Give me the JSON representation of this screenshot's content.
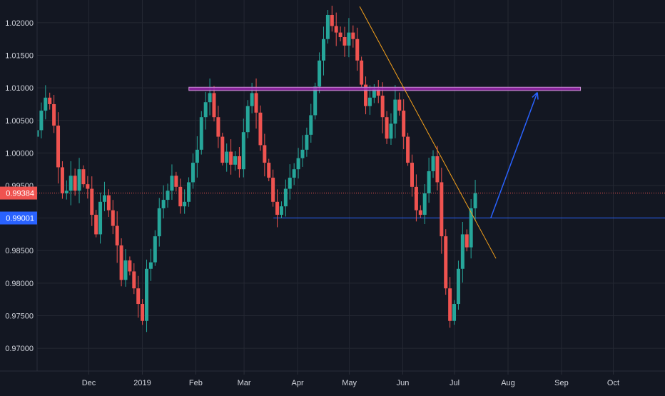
{
  "chart_data": {
    "type": "candlestick",
    "title": "",
    "xlabel": "",
    "ylabel": "",
    "ylim": [
      0.9665,
      1.0235
    ],
    "grid": true,
    "y_ticks": [
      "1.02000",
      "1.01500",
      "1.01000",
      "1.00500",
      "1.00000",
      "0.99500",
      "0.99000",
      "0.98500",
      "0.98000",
      "0.97500",
      "0.97000"
    ],
    "y_tick_values": [
      1.02,
      1.015,
      1.01,
      1.005,
      1.0,
      0.995,
      0.99,
      0.985,
      0.98,
      0.975,
      0.97
    ],
    "x_ticks": [
      "Dec",
      "2019",
      "Feb",
      "Mar",
      "Apr",
      "May",
      "Jun",
      "Jul",
      "Aug",
      "Sep",
      "Oct"
    ],
    "x_tick_dates": [
      "2018-12-01",
      "2019-01-01",
      "2019-02-01",
      "2019-03-01",
      "2019-04-01",
      "2019-05-01",
      "2019-06-01",
      "2019-07-01",
      "2019-08-01",
      "2019-09-01",
      "2019-10-01"
    ],
    "price_labels": {
      "current": {
        "value": 0.99384,
        "text": "0.99384",
        "color": "#ef5350"
      },
      "support": {
        "value": 0.99001,
        "text": "0.99001",
        "color": "#2962ff"
      }
    },
    "candles_close": [
      1.0035,
      1.0065,
      1.0085,
      1.0075,
      1.0042,
      0.9978,
      0.9938,
      0.9942,
      0.9965,
      0.9942,
      0.9975,
      0.9952,
      0.9945,
      0.9905,
      0.9875,
      0.9925,
      0.9935,
      0.9912,
      0.9888,
      0.9858,
      0.9805,
      0.9835,
      0.9818,
      0.9792,
      0.9768,
      0.9742,
      0.9822,
      0.9832,
      0.9872,
      0.9915,
      0.9928,
      0.9942,
      0.9965,
      0.9948,
      0.9918,
      0.9925,
      0.9955,
      0.9985,
      1.0005,
      1.0055,
      1.0078,
      1.0092,
      1.0055,
      1.0025,
      0.9985,
      1.0002,
      0.9982,
      0.9995,
      0.9975,
      1.0032,
      1.0072,
      1.0092,
      1.0062,
      1.0012,
      0.9985,
      0.9962,
      0.9925,
      0.9905,
      0.9918,
      0.9945,
      0.9962,
      0.9975,
      0.9992,
      1.0005,
      1.0028,
      1.0058,
      1.0102,
      1.0142,
      1.0175,
      1.0212,
      1.0195,
      1.0185,
      1.0178,
      1.0165,
      1.0185,
      1.0175,
      1.0142,
      1.0105,
      1.0072,
      1.0085,
      1.0098,
      1.0088,
      1.0055,
      1.0022,
      1.0045,
      1.0082,
      1.0065,
      1.0025,
      0.9985,
      0.9948,
      0.9912,
      0.9905,
      0.9938,
      0.9972,
      0.9995,
      0.9955,
      0.9872,
      0.9792,
      0.9742,
      0.9768,
      0.9822,
      0.9875,
      0.9855,
      0.9915,
      0.9938
    ],
    "annotations": {
      "resistance_zone": {
        "y_from": 1.0096,
        "y_to": 1.0101,
        "from_date": "2019-01-28",
        "to_date": "2019-09-12",
        "color": "#9c27b0"
      },
      "support_line": {
        "y": 0.99001,
        "from_date": "2019-03-18",
        "color": "#2962ff"
      },
      "current_price_line": {
        "y": 0.99384,
        "color": "#ef5350",
        "style": "dotted"
      },
      "trendline": {
        "from": [
          "2019-05-07",
          1.0225
        ],
        "to": [
          "2019-07-25",
          0.9838
        ],
        "color": "#f7a21b"
      },
      "projection_arrow": {
        "from": [
          "2019-07-22",
          0.99001
        ],
        "to": [
          "2019-08-18",
          1.0093
        ],
        "color": "#2962ff"
      }
    }
  }
}
